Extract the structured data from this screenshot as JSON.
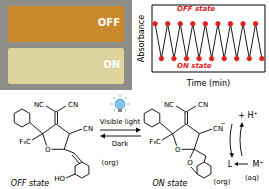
{
  "photo": {
    "vials": [
      {
        "label": "OFF",
        "color": "#c8882c"
      },
      {
        "label": "ON",
        "color": "#dcd49c"
      }
    ]
  },
  "chart_data": {
    "type": "line",
    "x_label": "Time (min)",
    "y_label": "Absorbance",
    "annotations": [
      "OFF state",
      "ON state"
    ],
    "x": [
      0,
      1,
      2,
      3,
      4,
      5,
      6,
      7,
      8,
      9,
      10,
      11,
      12,
      13,
      14,
      15,
      16,
      17
    ],
    "values": [
      0.72,
      0.2,
      0.72,
      0.2,
      0.72,
      0.2,
      0.72,
      0.2,
      0.72,
      0.2,
      0.72,
      0.2,
      0.72,
      0.2,
      0.72,
      0.2,
      0.72,
      0.2
    ],
    "color": "#000000",
    "marker": "circle",
    "xlim": [
      -0.5,
      17.5
    ],
    "ylim": [
      0,
      1
    ],
    "tick_labels": false
  },
  "scheme": {
    "left": {
      "caption": "OFF state",
      "phase": "(org)",
      "groups": [
        "NC",
        "CN",
        "CN",
        "F₃C",
        "O",
        "HO"
      ]
    },
    "arrow": {
      "forward": "Visible light",
      "back": "Dark"
    },
    "right": {
      "caption": "ON state",
      "phase": "(org)",
      "groups": [
        "NC",
        "CN",
        "CN",
        "F₃C",
        "O",
        "O",
        "−"
      ]
    },
    "equilibrium": {
      "top": "+ H⁺",
      "left": "L",
      "right": "M⁺",
      "phase": "(aq)"
    }
  }
}
